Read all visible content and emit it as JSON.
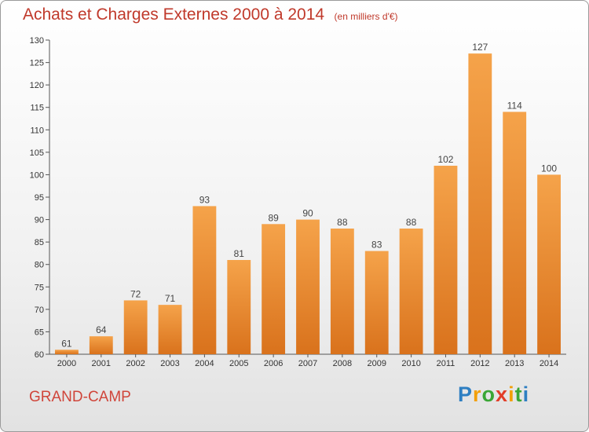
{
  "title": "Achats et Charges Externes 2000 à 2014",
  "subtitle": "(en milliers d'€)",
  "place": "GRAND-CAMP",
  "brand": {
    "letters": [
      "P",
      "r",
      "o",
      "x",
      "i",
      "t",
      "i"
    ],
    "colors": [
      "#2e7fc2",
      "#f29f05",
      "#3aa635",
      "#e23d28",
      "#f29f05",
      "#3aa635",
      "#2e7fc2"
    ]
  },
  "colors": {
    "bar_top": "#f5a34a",
    "bar_bottom": "#d9721c",
    "title": "#c0392b"
  },
  "chart_data": {
    "type": "bar",
    "title": "Achats et Charges Externes 2000 à 2014",
    "subtitle": "(en milliers d'€)",
    "categories": [
      "2000",
      "2001",
      "2002",
      "2003",
      "2004",
      "2005",
      "2006",
      "2007",
      "2008",
      "2009",
      "2010",
      "2011",
      "2012",
      "2013",
      "2014"
    ],
    "values": [
      61,
      64,
      72,
      71,
      93,
      81,
      89,
      90,
      88,
      83,
      88,
      102,
      127,
      114,
      100
    ],
    "ylim": [
      60,
      130
    ],
    "yticks": [
      60,
      65,
      70,
      75,
      80,
      85,
      90,
      95,
      100,
      105,
      110,
      115,
      120,
      125,
      130
    ],
    "grid": false,
    "xlabel": "",
    "ylabel": ""
  }
}
